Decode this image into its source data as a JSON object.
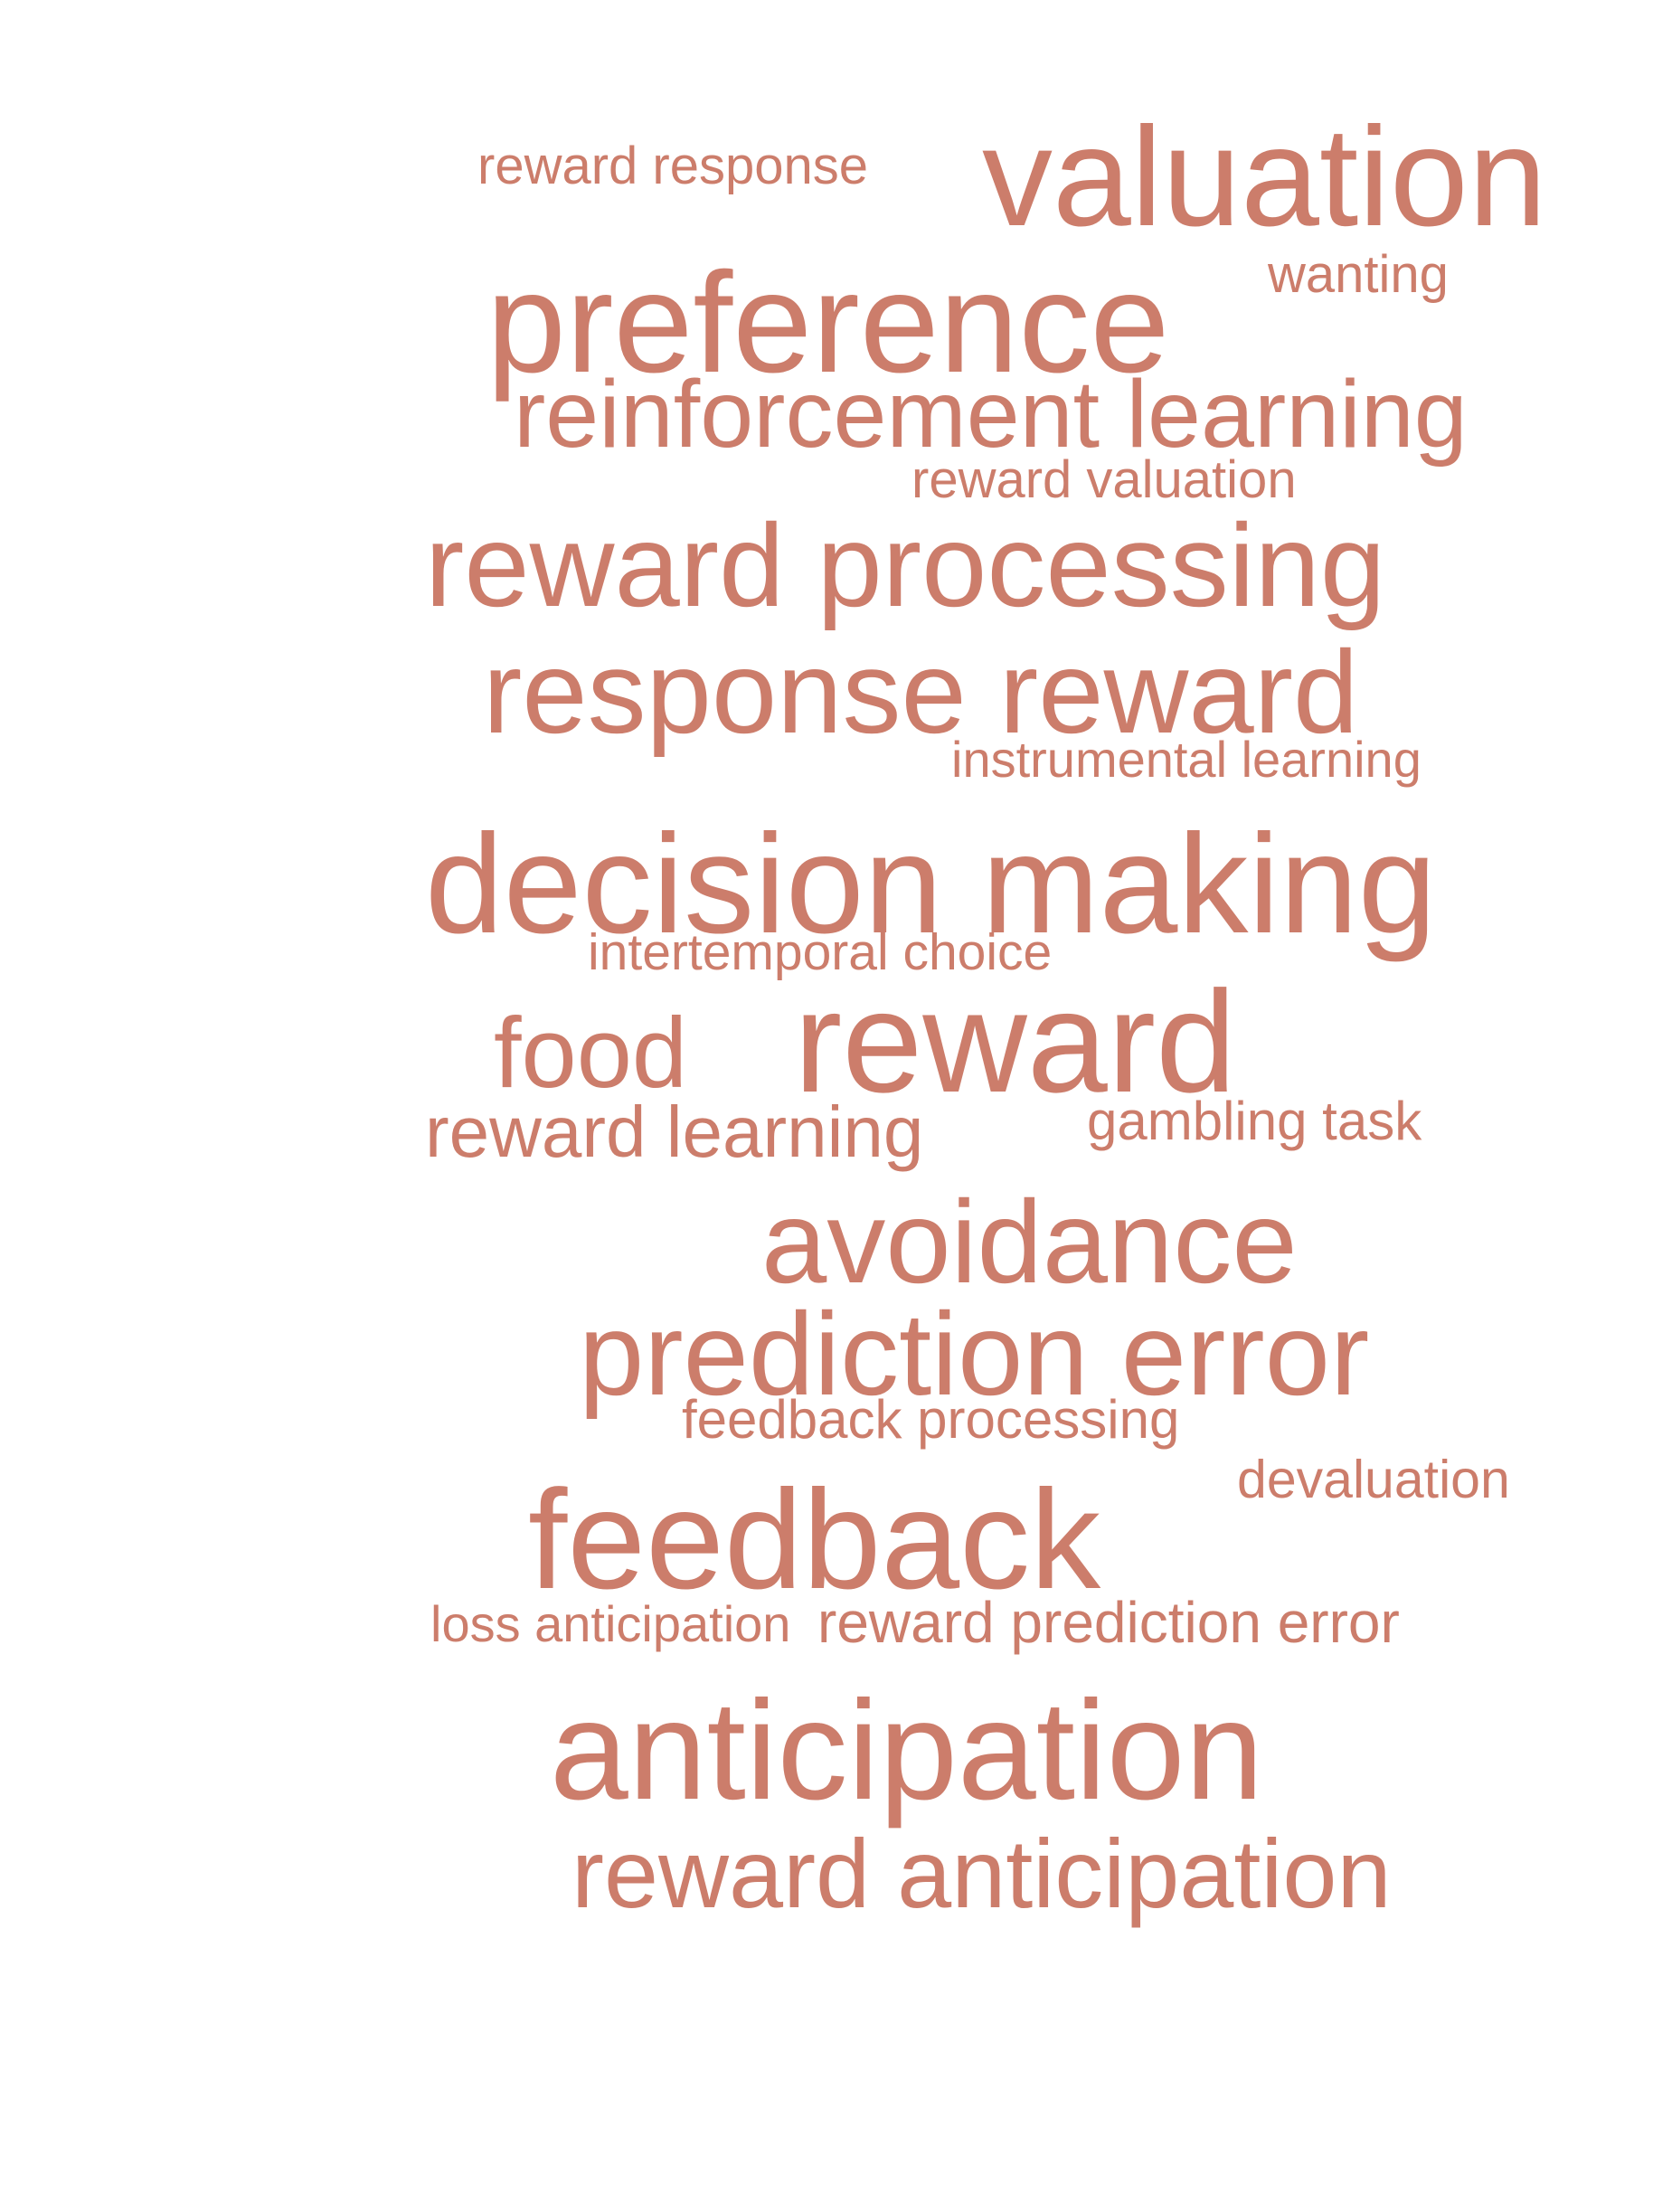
{
  "word_cloud": {
    "color": "#cc7d6b",
    "words": {
      "reward_response": "reward response",
      "valuation": "valuation",
      "wanting": "wanting",
      "preference": "preference",
      "reinforcement_learning": "reinforcement learning",
      "reward_valuation": "reward valuation",
      "reward_processing": "reward processing",
      "response_reward": "response reward",
      "instrumental_learning": "instrumental learning",
      "decision_making": "decision making",
      "intertemporal_choice": "intertemporal choice",
      "food": "food",
      "reward": "reward",
      "reward_learning": "reward learning",
      "gambling_task": "gambling task",
      "avoidance": "avoidance",
      "prediction_error": "prediction error",
      "feedback_processing": "feedback processing",
      "devaluation": "devaluation",
      "feedback": "feedback",
      "loss_anticipation": "loss anticipation",
      "reward_prediction_error": "reward prediction error",
      "anticipation": "anticipation",
      "reward_anticipation": "reward anticipation"
    }
  }
}
